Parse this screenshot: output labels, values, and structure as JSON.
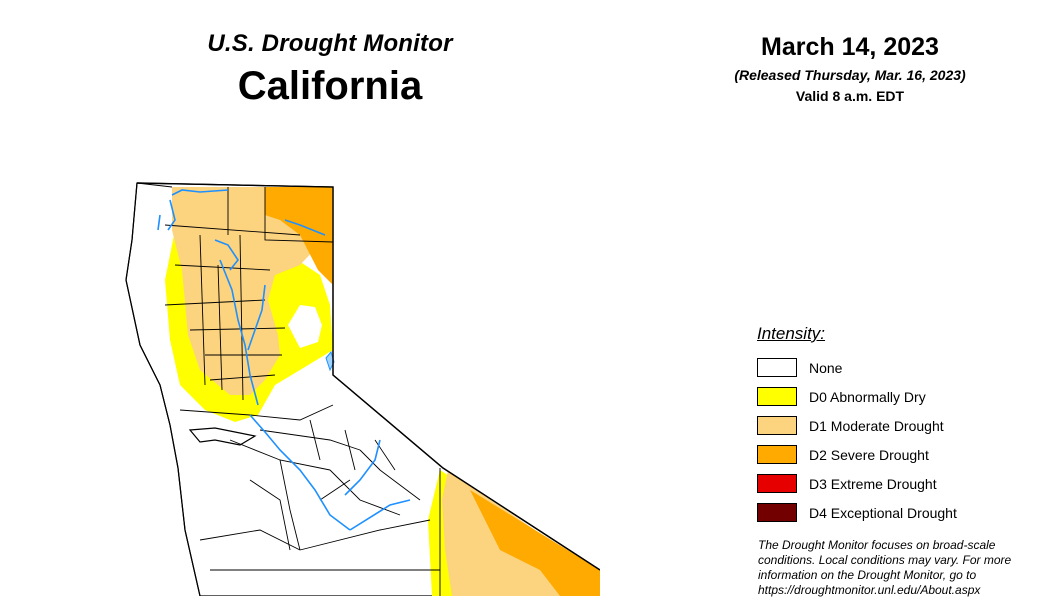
{
  "header": {
    "subtitle": "U.S. Drought Monitor",
    "title": "California"
  },
  "date": {
    "main": "March 14, 2023",
    "released": "(Released Thursday, Mar. 16, 2023)",
    "valid": "Valid 8 a.m. EDT"
  },
  "legend": {
    "title": "Intensity:",
    "items": [
      {
        "label": "None",
        "color": "#ffffff"
      },
      {
        "label": "D0 Abnormally Dry",
        "color": "#ffff00"
      },
      {
        "label": "D1 Moderate Drought",
        "color": "#fcd37f"
      },
      {
        "label": "D2 Severe Drought",
        "color": "#ffaa00"
      },
      {
        "label": "D3 Extreme Drought",
        "color": "#e60000"
      },
      {
        "label": "D4 Exceptional Drought",
        "color": "#730000"
      }
    ]
  },
  "note": {
    "text": "The Drought Monitor focuses on broad-scale conditions. Local conditions may vary. For more information on the Drought Monitor, go to https://droughtmonitor.unl.edu/About.aspx"
  },
  "colors": {
    "none": "#ffffff",
    "d0": "#ffff00",
    "d1": "#fcd37f",
    "d2": "#ffaa00",
    "water": "#1e90ff",
    "boundary": "#000000"
  }
}
